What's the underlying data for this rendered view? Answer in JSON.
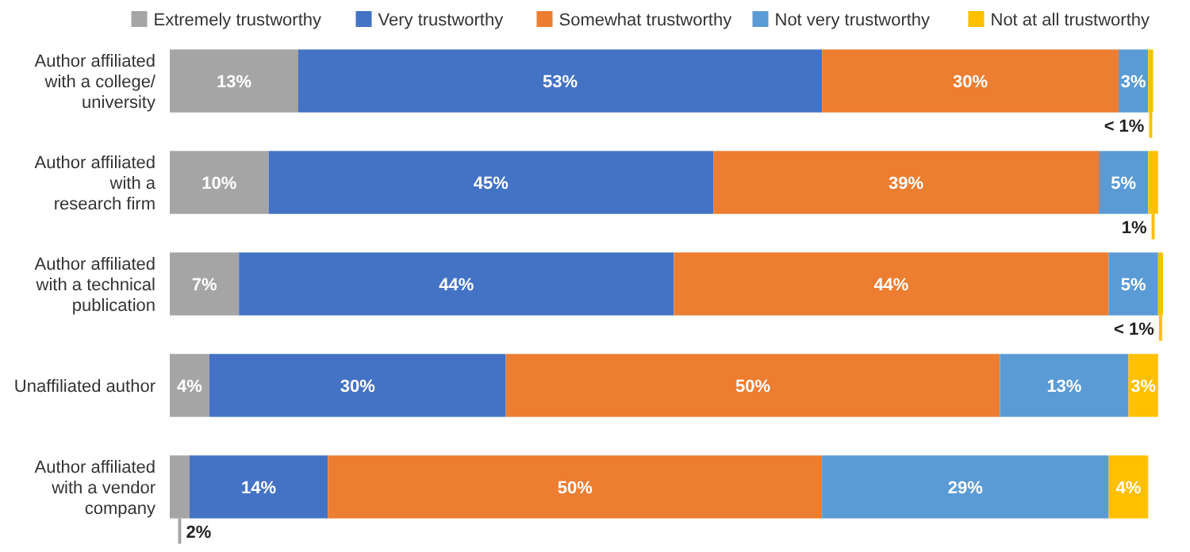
{
  "chart_data": {
    "type": "bar",
    "orientation": "horizontal",
    "stacked": true,
    "legend": "top",
    "data_labels": true,
    "xlim": [
      0,
      100.5
    ],
    "categories": [
      "Author affiliated\nwith a college/\nuniversity",
      "Author affiliated\nwith a\nresearch firm",
      "Author affiliated\nwith a technical\npublication",
      "Unaffiliated author",
      "Author affiliated\nwith a vendor\ncompany"
    ],
    "series": [
      {
        "name": "Extremely trustworthy",
        "color": "#a5a5a5",
        "values": [
          13,
          10,
          7,
          4,
          2
        ],
        "value_labels": [
          "13%",
          "10%",
          "7%",
          "4%",
          "2%"
        ]
      },
      {
        "name": "Very trustworthy",
        "color": "#4472c4",
        "values": [
          53,
          45,
          44,
          30,
          14
        ],
        "value_labels": [
          "53%",
          "45%",
          "44%",
          "30%",
          "14%"
        ]
      },
      {
        "name": "Somewhat trustworthy",
        "color": "#ed7d31",
        "values": [
          30,
          39,
          44,
          50,
          50
        ],
        "value_labels": [
          "30%",
          "39%",
          "44%",
          "50%",
          "50%"
        ]
      },
      {
        "name": "Not very trustworthy",
        "color": "#5b9bd5",
        "values": [
          3,
          5,
          5,
          13,
          29
        ],
        "value_labels": [
          "3%",
          "5%",
          "5%",
          "13%",
          "29%"
        ]
      },
      {
        "name": "Not at all trustworthy",
        "color": "#ffc000",
        "values": [
          0.5,
          1,
          0.5,
          3,
          4
        ],
        "value_labels": [
          "< 1%",
          "1%",
          "< 1%",
          "3%",
          "4%"
        ]
      }
    ]
  }
}
